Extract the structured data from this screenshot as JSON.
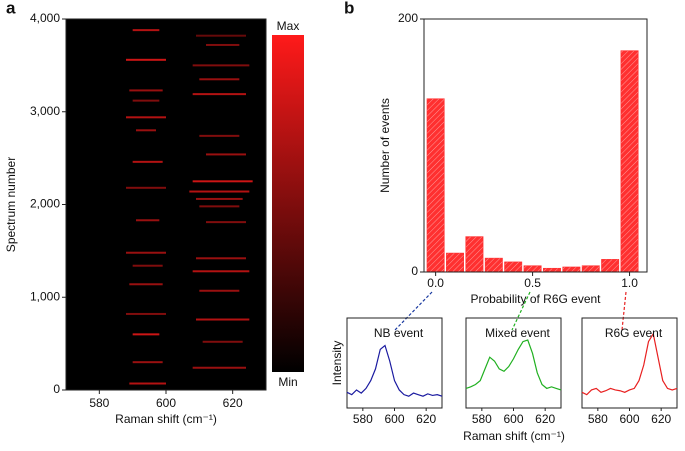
{
  "chart_data": [
    {
      "type": "heatmap",
      "panel": "a",
      "xlabel": "Raman shift (cm⁻¹)",
      "ylabel": "Spectrum number",
      "xlim": [
        570,
        630
      ],
      "xticks": [
        580,
        600,
        620
      ],
      "ylim": [
        0,
        4000
      ],
      "yticks": [
        0,
        {
          "value": 1000,
          "label": "1,000"
        },
        {
          "value": 2000,
          "label": "2,000"
        },
        {
          "value": 3000,
          "label": "3,000"
        },
        {
          "value": 4000,
          "label": "4,000"
        }
      ],
      "color": "#ff1a1a",
      "colorbar_labels": [
        "Max",
        "Min"
      ],
      "streaks": [
        {
          "spectrum": 3880,
          "from": 590,
          "to": 598,
          "intensity": 0.7
        },
        {
          "spectrum": 3820,
          "from": 609,
          "to": 624,
          "intensity": 0.4
        },
        {
          "spectrum": 3720,
          "from": 612,
          "to": 622,
          "intensity": 0.5
        },
        {
          "spectrum": 3560,
          "from": 588,
          "to": 600,
          "intensity": 0.8
        },
        {
          "spectrum": 3500,
          "from": 608,
          "to": 625,
          "intensity": 0.5
        },
        {
          "spectrum": 3350,
          "from": 610,
          "to": 622,
          "intensity": 0.6
        },
        {
          "spectrum": 3230,
          "from": 589,
          "to": 599,
          "intensity": 0.6
        },
        {
          "spectrum": 3190,
          "from": 608,
          "to": 624,
          "intensity": 0.7
        },
        {
          "spectrum": 3120,
          "from": 590,
          "to": 598,
          "intensity": 0.5
        },
        {
          "spectrum": 2940,
          "from": 588,
          "to": 600,
          "intensity": 0.7
        },
        {
          "spectrum": 2800,
          "from": 591,
          "to": 597,
          "intensity": 0.6
        },
        {
          "spectrum": 2740,
          "from": 610,
          "to": 622,
          "intensity": 0.5
        },
        {
          "spectrum": 2540,
          "from": 612,
          "to": 624,
          "intensity": 0.6
        },
        {
          "spectrum": 2460,
          "from": 590,
          "to": 599,
          "intensity": 0.7
        },
        {
          "spectrum": 2250,
          "from": 608,
          "to": 626,
          "intensity": 0.8
        },
        {
          "spectrum": 2180,
          "from": 588,
          "to": 600,
          "intensity": 0.5
        },
        {
          "spectrum": 2140,
          "from": 607,
          "to": 625,
          "intensity": 0.7
        },
        {
          "spectrum": 2060,
          "from": 609,
          "to": 623,
          "intensity": 0.6
        },
        {
          "spectrum": 1980,
          "from": 610,
          "to": 622,
          "intensity": 0.5
        },
        {
          "spectrum": 1830,
          "from": 591,
          "to": 598,
          "intensity": 0.6
        },
        {
          "spectrum": 1810,
          "from": 612,
          "to": 624,
          "intensity": 0.5
        },
        {
          "spectrum": 1480,
          "from": 588,
          "to": 600,
          "intensity": 0.6
        },
        {
          "spectrum": 1420,
          "from": 609,
          "to": 624,
          "intensity": 0.6
        },
        {
          "spectrum": 1340,
          "from": 590,
          "to": 599,
          "intensity": 0.5
        },
        {
          "spectrum": 1280,
          "from": 608,
          "to": 625,
          "intensity": 0.7
        },
        {
          "spectrum": 1140,
          "from": 589,
          "to": 599,
          "intensity": 0.6
        },
        {
          "spectrum": 1070,
          "from": 610,
          "to": 622,
          "intensity": 0.6
        },
        {
          "spectrum": 820,
          "from": 588,
          "to": 600,
          "intensity": 0.5
        },
        {
          "spectrum": 760,
          "from": 609,
          "to": 625,
          "intensity": 0.7
        },
        {
          "spectrum": 600,
          "from": 590,
          "to": 598,
          "intensity": 0.8
        },
        {
          "spectrum": 520,
          "from": 611,
          "to": 623,
          "intensity": 0.5
        },
        {
          "spectrum": 300,
          "from": 590,
          "to": 599,
          "intensity": 0.6
        },
        {
          "spectrum": 240,
          "from": 608,
          "to": 624,
          "intensity": 0.6
        },
        {
          "spectrum": 70,
          "from": 589,
          "to": 600,
          "intensity": 0.7
        }
      ]
    },
    {
      "type": "histogram",
      "panel": "b",
      "xlabel": "Probability of R6G event",
      "ylabel": "Number of events",
      "bins": [
        -0.05,
        0.05,
        0.15,
        0.25,
        0.35,
        0.45,
        0.55,
        0.65,
        0.75,
        0.85,
        0.95,
        1.05
      ],
      "values": [
        137,
        15,
        28,
        11,
        8,
        5,
        3,
        4,
        5,
        10,
        175
      ],
      "color": "#ff2a2a",
      "xlim": [
        -0.06,
        1.09
      ],
      "xticks": [
        {
          "value": 0,
          "label": "0.0"
        },
        0.5,
        {
          "value": 1,
          "label": "1.0"
        }
      ],
      "ylim": [
        0,
        200
      ],
      "yticks": [
        0,
        200
      ]
    },
    {
      "type": "line",
      "xlabel": "Raman shift (cm⁻¹)",
      "ylabel": "Intensity",
      "x": [
        570,
        573,
        576,
        579,
        582,
        585,
        588,
        591,
        594,
        597,
        600,
        603,
        606,
        609,
        612,
        615,
        618,
        621,
        624,
        627,
        630
      ],
      "xlim": [
        570,
        630
      ],
      "xticks": [
        580,
        600,
        620
      ],
      "ylim": [
        0,
        1
      ],
      "series": [
        {
          "name": "NB event",
          "color": "#1a1aa0",
          "values": [
            0.15,
            0.12,
            0.18,
            0.14,
            0.2,
            0.3,
            0.45,
            0.7,
            0.75,
            0.55,
            0.3,
            0.18,
            0.12,
            0.1,
            0.14,
            0.12,
            0.1,
            0.13,
            0.11,
            0.12,
            0.1
          ]
        },
        {
          "name": "Mixed event",
          "color": "#20b020",
          "values": [
            0.2,
            0.22,
            0.25,
            0.3,
            0.45,
            0.6,
            0.55,
            0.45,
            0.42,
            0.48,
            0.58,
            0.7,
            0.8,
            0.82,
            0.65,
            0.4,
            0.25,
            0.2,
            0.22,
            0.2,
            0.18
          ]
        },
        {
          "name": "R6G event",
          "color": "#e82020",
          "values": [
            0.15,
            0.12,
            0.18,
            0.2,
            0.15,
            0.17,
            0.2,
            0.18,
            0.17,
            0.15,
            0.18,
            0.2,
            0.3,
            0.5,
            0.8,
            0.9,
            0.6,
            0.3,
            0.2,
            0.18,
            0.2
          ]
        }
      ]
    }
  ]
}
